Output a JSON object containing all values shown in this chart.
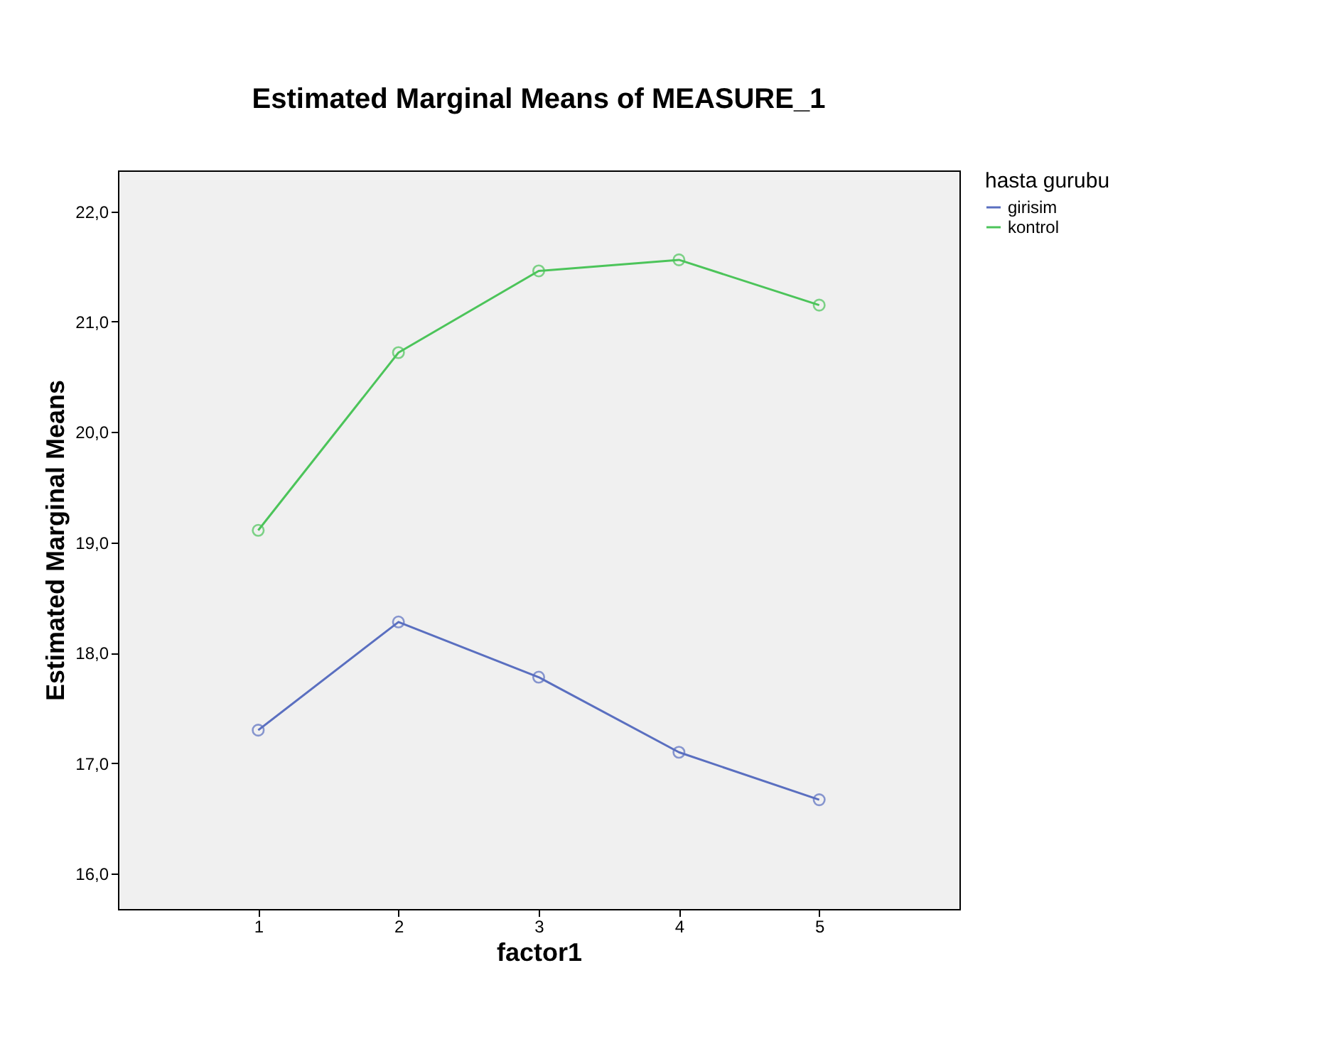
{
  "chart_data": {
    "type": "line",
    "title": "Estimated Marginal Means of MEASURE_1",
    "xlabel": "factor1",
    "ylabel": "Estimated Marginal Means",
    "legend_title": "hasta gurubu",
    "categories": [
      "1",
      "2",
      "3",
      "4",
      "5"
    ],
    "series": [
      {
        "name": "girisim",
        "color": "#5a6fc0",
        "values": [
          17.3,
          18.28,
          17.78,
          17.1,
          16.67
        ]
      },
      {
        "name": "kontrol",
        "color": "#4cc45a",
        "values": [
          19.11,
          20.72,
          21.46,
          21.56,
          21.15
        ]
      }
    ],
    "ylim": [
      15.68,
      22.37
    ],
    "yticks": [
      {
        "value": 16,
        "label": "16,0"
      },
      {
        "value": 17,
        "label": "17,0"
      },
      {
        "value": 18,
        "label": "18,0"
      },
      {
        "value": 19,
        "label": "19,0"
      },
      {
        "value": 20,
        "label": "20,0"
      },
      {
        "value": 21,
        "label": "21,0"
      },
      {
        "value": 22,
        "label": "22,0"
      }
    ],
    "marker": "circle",
    "line_style": "solid",
    "grid": false,
    "legend": "top right"
  }
}
